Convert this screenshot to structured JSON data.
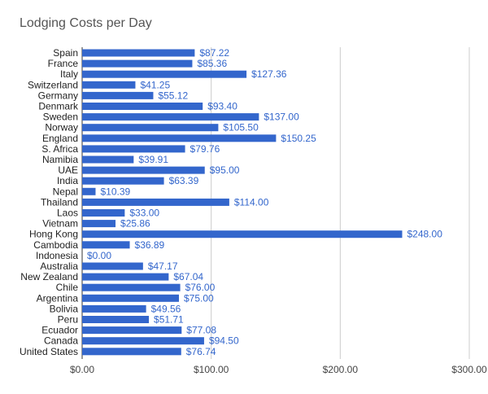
{
  "chart_data": {
    "type": "bar",
    "orientation": "horizontal",
    "title": "Lodging Costs per Day",
    "xlabel": "",
    "ylabel": "",
    "xlim": [
      0,
      300
    ],
    "x_ticks": [
      "$0.00",
      "$100.00",
      "$200.00",
      "$300.00"
    ],
    "grid": true,
    "legend": "none",
    "bar_color": "#3366cc",
    "label_color": "#3366cc",
    "categories": [
      "Spain",
      "France",
      "Italy",
      "Switzerland",
      "Germany",
      "Denmark",
      "Sweden",
      "Norway",
      "England",
      "S. Africa",
      "Namibia",
      "UAE",
      "India",
      "Nepal",
      "Thailand",
      "Laos",
      "Vietnam",
      "Hong Kong",
      "Cambodia",
      "Indonesia",
      "Australia",
      "New Zealand",
      "Chile",
      "Argentina",
      "Bolivia",
      "Peru",
      "Ecuador",
      "Canada",
      "United States"
    ],
    "values": [
      87.22,
      85.36,
      127.36,
      41.25,
      55.12,
      93.4,
      137.0,
      105.5,
      150.25,
      79.76,
      39.91,
      95.0,
      63.39,
      10.39,
      114.0,
      33.0,
      25.86,
      248.0,
      36.89,
      0.0,
      47.17,
      67.04,
      76.0,
      75.0,
      49.56,
      51.71,
      77.08,
      94.5,
      76.74
    ],
    "value_labels": [
      "$87.22",
      "$85.36",
      "$127.36",
      "$41.25",
      "$55.12",
      "$93.40",
      "$137.00",
      "$105.50",
      "$150.25",
      "$79.76",
      "$39.91",
      "$95.00",
      "$63.39",
      "$10.39",
      "$114.00",
      "$33.00",
      "$25.86",
      "$248.00",
      "$36.89",
      "$0.00",
      "$47.17",
      "$67.04",
      "$76.00",
      "$75.00",
      "$49.56",
      "$51.71",
      "$77.08",
      "$94.50",
      "$76.74"
    ]
  }
}
